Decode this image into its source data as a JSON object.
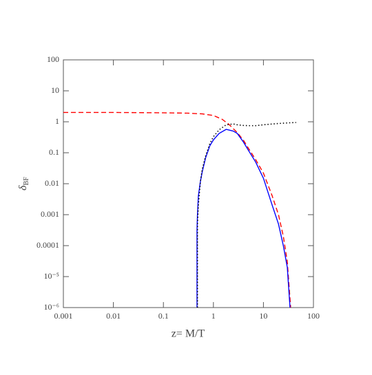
{
  "chart_data": {
    "type": "line",
    "x_label": "z=  M/T",
    "y_label": {
      "symbol": "δ",
      "subscript": "BF"
    },
    "xscale": "log",
    "yscale": "log",
    "xlim": [
      0.001,
      100
    ],
    "ylim": [
      1e-06,
      100
    ],
    "xticks": [
      0.001,
      0.01,
      0.1,
      1,
      10,
      100
    ],
    "yticks": [
      100,
      10,
      1,
      0.1,
      0.01,
      0.001,
      0.0001,
      {
        "value": 1e-05,
        "label": "10⁻⁵"
      },
      {
        "value": 1e-06,
        "label": "10⁻⁶"
      }
    ],
    "series": [
      {
        "color": "#ff0000",
        "dash": "dashed",
        "x": [
          0.001,
          0.01,
          0.1,
          0.3,
          0.6,
          1,
          1.5,
          2,
          3,
          4,
          5,
          7,
          10,
          15,
          20,
          25,
          30,
          35
        ],
        "values": [
          2,
          2,
          1.95,
          1.9,
          1.8,
          1.6,
          1.2,
          0.85,
          0.45,
          0.25,
          0.14,
          0.06,
          0.022,
          0.004,
          0.001,
          0.0002,
          3e-05,
          1e-06
        ]
      },
      {
        "color": "#0000ff",
        "dash": "solid",
        "x": [
          0.47,
          0.47,
          0.48,
          0.5,
          0.55,
          0.6,
          0.7,
          0.85,
          1,
          1.3,
          1.8,
          2.5,
          3,
          4,
          5,
          7,
          10,
          15,
          20,
          25,
          30,
          34
        ],
        "values": [
          1e-06,
          0.0003,
          0.001,
          0.004,
          0.012,
          0.025,
          0.07,
          0.17,
          0.26,
          0.42,
          0.57,
          0.5,
          0.42,
          0.22,
          0.12,
          0.05,
          0.015,
          0.002,
          0.0005,
          0.0001,
          2e-05,
          1e-06
        ]
      },
      {
        "color": "#000000",
        "dash": "dotted",
        "x": [
          0.48,
          0.48,
          0.5,
          0.55,
          0.6,
          0.7,
          0.85,
          1,
          1.3,
          1.8,
          2.5,
          3,
          4,
          5,
          7,
          10,
          15,
          20,
          30,
          45
        ],
        "values": [
          1e-06,
          0.0005,
          0.002,
          0.012,
          0.03,
          0.08,
          0.2,
          0.33,
          0.55,
          0.8,
          0.85,
          0.8,
          0.76,
          0.75,
          0.75,
          0.8,
          0.85,
          0.88,
          0.92,
          0.95
        ]
      }
    ]
  }
}
